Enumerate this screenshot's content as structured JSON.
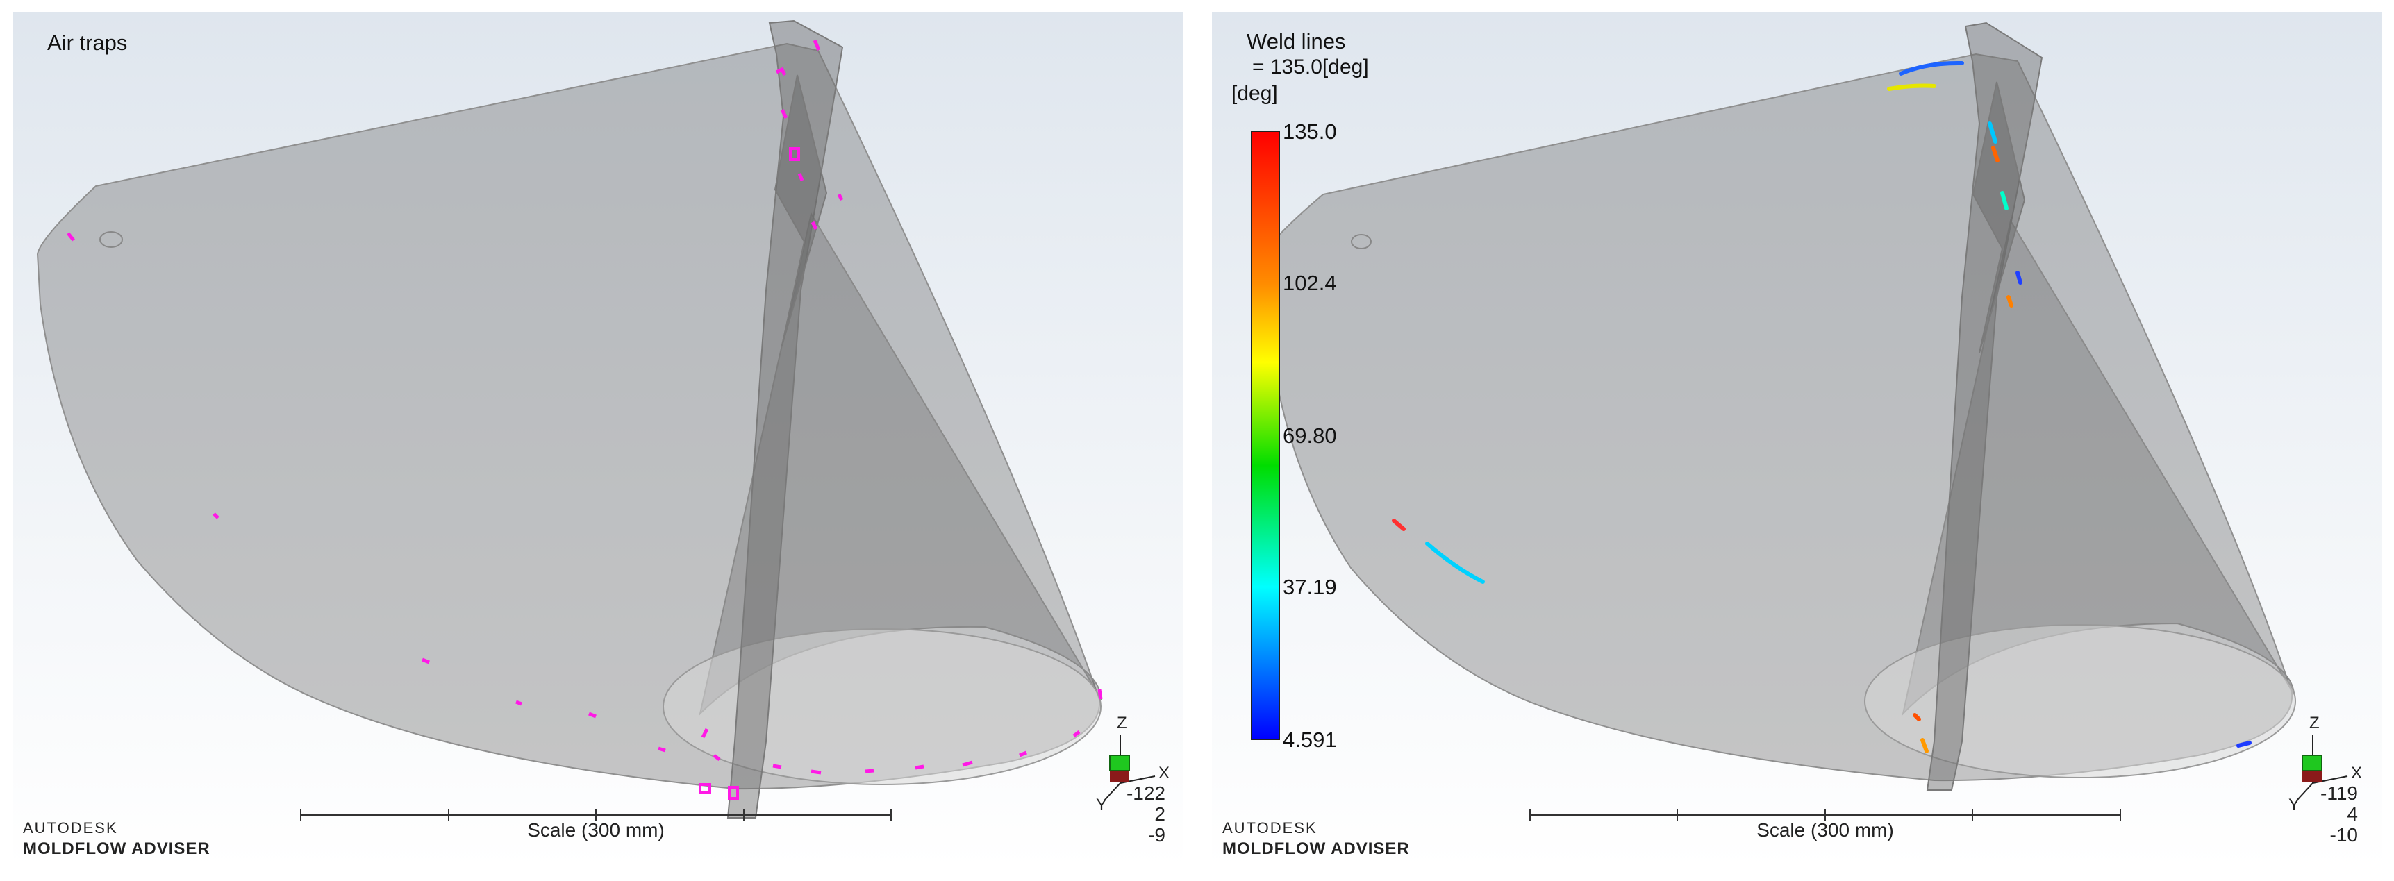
{
  "left_panel": {
    "result_title": "Air traps",
    "brand": {
      "line1": "AUTODESK",
      "line2": "MOLDFLOW ADVISER"
    },
    "scale_label": "Scale (300 mm)",
    "coords": [
      "-122",
      "2",
      "-9"
    ],
    "axes": {
      "z": "Z",
      "x": "X",
      "y": "Y"
    },
    "air_trap_color": "#ff19e6"
  },
  "right_panel": {
    "result_title": "Weld lines",
    "result_value": "= 135.0[deg]",
    "unit": "[deg]",
    "legend": {
      "ticks": [
        "135.0",
        "102.4",
        "69.80",
        "37.19",
        "4.591"
      ]
    },
    "brand": {
      "line1": "AUTODESK",
      "line2": "MOLDFLOW ADVISER"
    },
    "scale_label": "Scale (300 mm)",
    "coords": [
      "-119",
      "4",
      "-10"
    ],
    "axes": {
      "z": "Z",
      "x": "X",
      "y": "Y"
    }
  }
}
